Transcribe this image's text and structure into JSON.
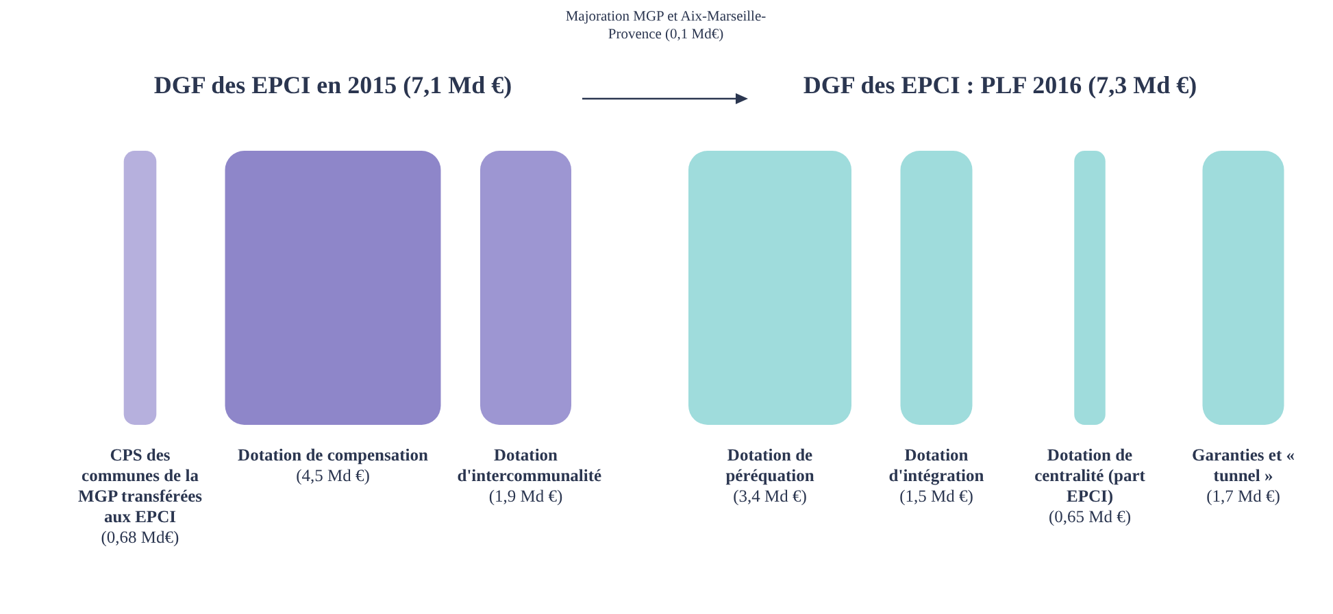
{
  "chart_data": [
    {
      "type": "other",
      "title": "DGF des EPCI en 2015 (7,1 Md €)",
      "categories": [
        "CPS des communes de la MGP transférées aux EPCI",
        "Dotation de compensation",
        "Dotation d'intercommunalité"
      ],
      "values": [
        0.68,
        4.5,
        1.9
      ],
      "value_labels": [
        "(0,68 Md€)",
        "(4,5 Md €)",
        "(1,9 Md €)"
      ],
      "colors": [
        "#b6b0dd",
        "#8e86c9",
        "#9d96d2"
      ],
      "annotations": [
        "Majoration MGP et Aix-Marseille-Provence (0,1 Md€)"
      ]
    },
    {
      "type": "other",
      "title": "DGF des EPCI : PLF 2016 (7,3 Md €)",
      "categories": [
        "Dotation de péréquation",
        "Dotation d'intégration",
        "Dotation de centralité (part EPCI)",
        "Garanties et « tunnel »"
      ],
      "values": [
        3.4,
        1.5,
        0.65,
        1.7
      ],
      "value_labels": [
        "(3,4 Md €)",
        "(1,5 Md €)",
        "(0,65 Md €)",
        "(1,7 Md €)"
      ],
      "colors": [
        "#9fdcdc",
        "#9fdcdc",
        "#9fdcdc",
        "#9fdcdc"
      ]
    }
  ]
}
